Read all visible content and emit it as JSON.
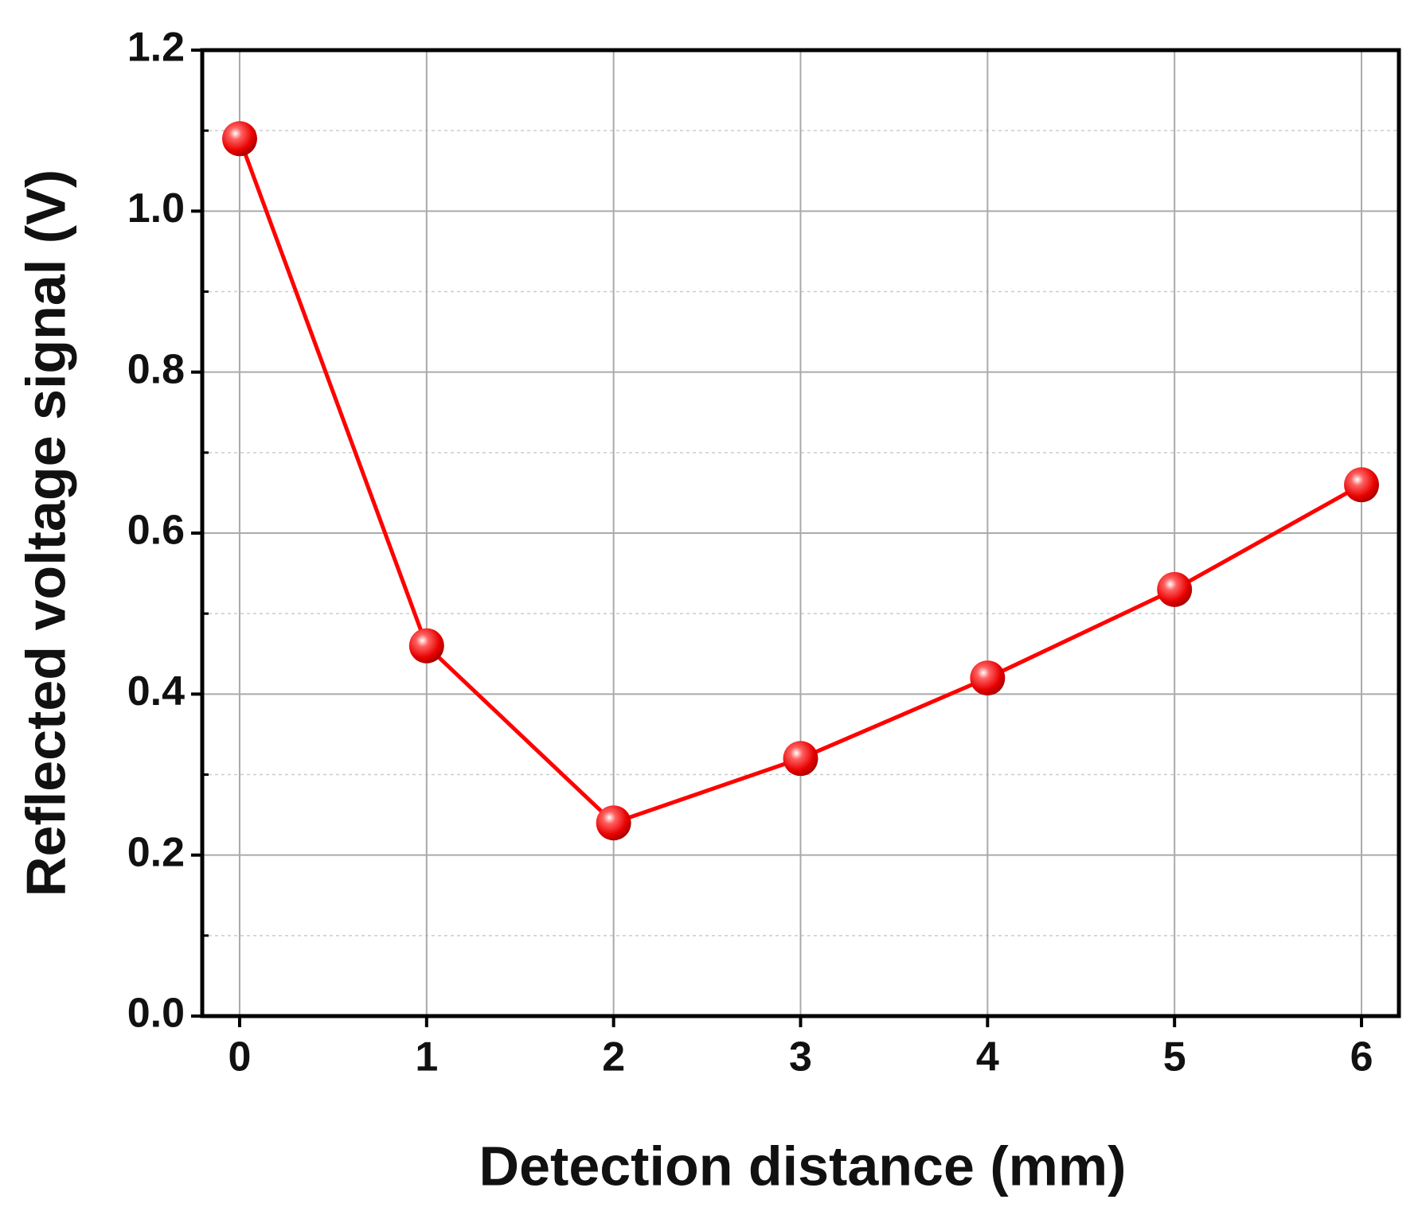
{
  "chart_data": {
    "type": "line",
    "x_label": "Detection distance (mm)",
    "y_label": "Reflected voltage signal (V)",
    "x": [
      0,
      1,
      2,
      3,
      4,
      5,
      6
    ],
    "series": [
      {
        "name": "Reflected voltage signal",
        "color": "#ff0000",
        "values": [
          1.09,
          0.46,
          0.24,
          0.32,
          0.42,
          0.53,
          0.66
        ]
      }
    ],
    "xlim": [
      -0.2,
      6.2
    ],
    "xticks": [
      0,
      1,
      2,
      3,
      4,
      5,
      6
    ],
    "ylim": [
      0,
      1.2
    ],
    "yticks": [
      {
        "value": 0,
        "label": "0.0"
      },
      0.2,
      0.4,
      0.6,
      0.8,
      {
        "value": 1,
        "label": "1.0"
      },
      1.2
    ],
    "yminorticks": [
      0.1,
      0.3,
      0.5,
      0.7,
      0.9,
      1.1
    ],
    "grid": true
  }
}
